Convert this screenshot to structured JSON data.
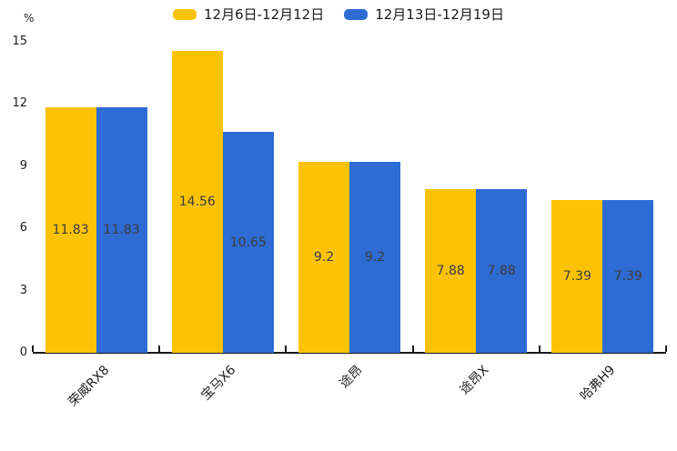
{
  "chart_data": {
    "type": "bar",
    "title": "",
    "unit_label": "%",
    "categories": [
      "荣威RX8",
      "宝马X6",
      "途昂",
      "途昂X",
      "哈弗H9"
    ],
    "series": [
      {
        "name": "12月6日-12月12日",
        "color": "#fcc306",
        "values": [
          11.83,
          14.56,
          9.2,
          7.88,
          7.39
        ]
      },
      {
        "name": "12月13日-12月19日",
        "color": "#2e6bd2",
        "values": [
          11.83,
          10.65,
          9.2,
          7.88,
          7.39
        ]
      }
    ],
    "value_labels": [
      "11.83",
      "14.56",
      "9.2",
      "7.88",
      "7.39",
      "11.83",
      "10.65",
      "9.2",
      "7.88",
      "7.39"
    ],
    "ylim": [
      0,
      15
    ],
    "yticks": [
      0,
      3,
      6,
      9,
      12,
      15
    ],
    "grid": false,
    "legend_position": "top",
    "axis_color": "#1a1a1a",
    "label_color": "#3d3d3d"
  }
}
